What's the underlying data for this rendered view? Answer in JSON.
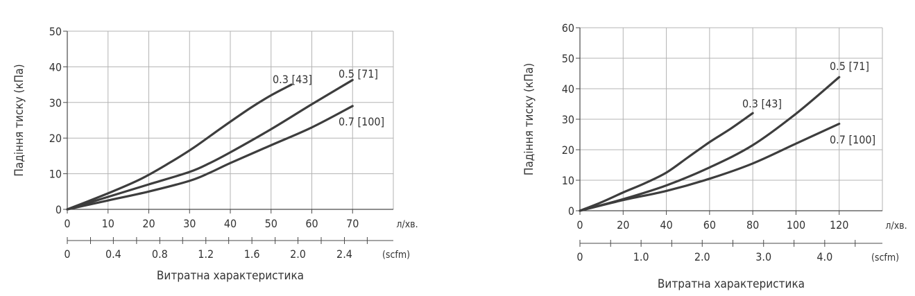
{
  "chart_data": [
    {
      "type": "line",
      "ylabel": "Падіння тиску (кПа)",
      "xlabel": "Витратна характеристика",
      "x_unit": "л/хв.",
      "x2_unit": "(scfm)",
      "xlim": [
        0,
        80
      ],
      "ylim": [
        0,
        50
      ],
      "xticks": [
        0,
        10,
        20,
        30,
        40,
        50,
        60,
        70
      ],
      "yticks": [
        0,
        10,
        20,
        30,
        40,
        50
      ],
      "x2_labels": [
        {
          "label": "0",
          "lpm": 0
        },
        {
          "label": "0.4",
          "lpm": 11.3
        },
        {
          "label": "0.8",
          "lpm": 22.7
        },
        {
          "label": "1.2",
          "lpm": 34.0
        },
        {
          "label": "1.6",
          "lpm": 45.3
        },
        {
          "label": "2.0",
          "lpm": 56.6
        },
        {
          "label": "2.4",
          "lpm": 68.0
        }
      ],
      "x2_minor_lpm": [
        5.7,
        17.0,
        28.3,
        39.6,
        51.0,
        62.3,
        73.6
      ],
      "grid": true,
      "series": [
        {
          "name": "0.3 [43]",
          "x": [
            0,
            10,
            18,
            25,
            31,
            38,
            45,
            50,
            55
          ],
          "y": [
            0,
            4.5,
            8.5,
            13,
            17.3,
            23,
            28.5,
            32,
            35
          ]
        },
        {
          "name": "0.5 [71]",
          "x": [
            0,
            10,
            20,
            30,
            35,
            40,
            50,
            60,
            70
          ],
          "y": [
            0,
            3.5,
            7,
            10.5,
            13,
            16,
            22.5,
            29.5,
            36.3
          ]
        },
        {
          "name": "0.7 [100]",
          "x": [
            0,
            10,
            20,
            30,
            35,
            40,
            50,
            60,
            70
          ],
          "y": [
            0,
            2.5,
            5,
            8,
            10.3,
            13,
            18,
            23,
            29
          ]
        }
      ]
    },
    {
      "type": "line",
      "ylabel": "Падіння тиску (кПа)",
      "xlabel": "Витратна характеристика",
      "x_unit": "л/хв.",
      "x2_unit": "(scfm)",
      "xlim": [
        0,
        140
      ],
      "ylim": [
        0,
        60
      ],
      "xticks": [
        0,
        20,
        40,
        60,
        80,
        100,
        120
      ],
      "yticks": [
        0,
        10,
        20,
        30,
        40,
        50,
        60
      ],
      "x2_labels": [
        {
          "label": "0",
          "lpm": 0
        },
        {
          "label": "1.0",
          "lpm": 28.3
        },
        {
          "label": "2.0",
          "lpm": 56.6
        },
        {
          "label": "3.0",
          "lpm": 85.0
        },
        {
          "label": "4.0",
          "lpm": 113.3
        }
      ],
      "x2_minor_lpm": [
        14.2,
        42.5,
        70.8,
        99.1,
        127.4
      ],
      "grid": true,
      "series": [
        {
          "name": "0.3 [43]",
          "x": [
            0,
            10,
            20,
            30,
            40,
            50,
            60,
            70,
            80
          ],
          "y": [
            0,
            2.8,
            6,
            9,
            12.5,
            17.5,
            22.5,
            27,
            32
          ]
        },
        {
          "name": "0.5 [71]",
          "x": [
            0,
            20,
            40,
            60,
            80,
            100,
            120
          ],
          "y": [
            0,
            3.8,
            8.3,
            14.2,
            21.5,
            31.8,
            43.8
          ]
        },
        {
          "name": "0.7 [100]",
          "x": [
            0,
            20,
            40,
            60,
            80,
            100,
            120
          ],
          "y": [
            0,
            3.5,
            6.5,
            10.5,
            15.5,
            22,
            28.5
          ]
        }
      ]
    }
  ]
}
